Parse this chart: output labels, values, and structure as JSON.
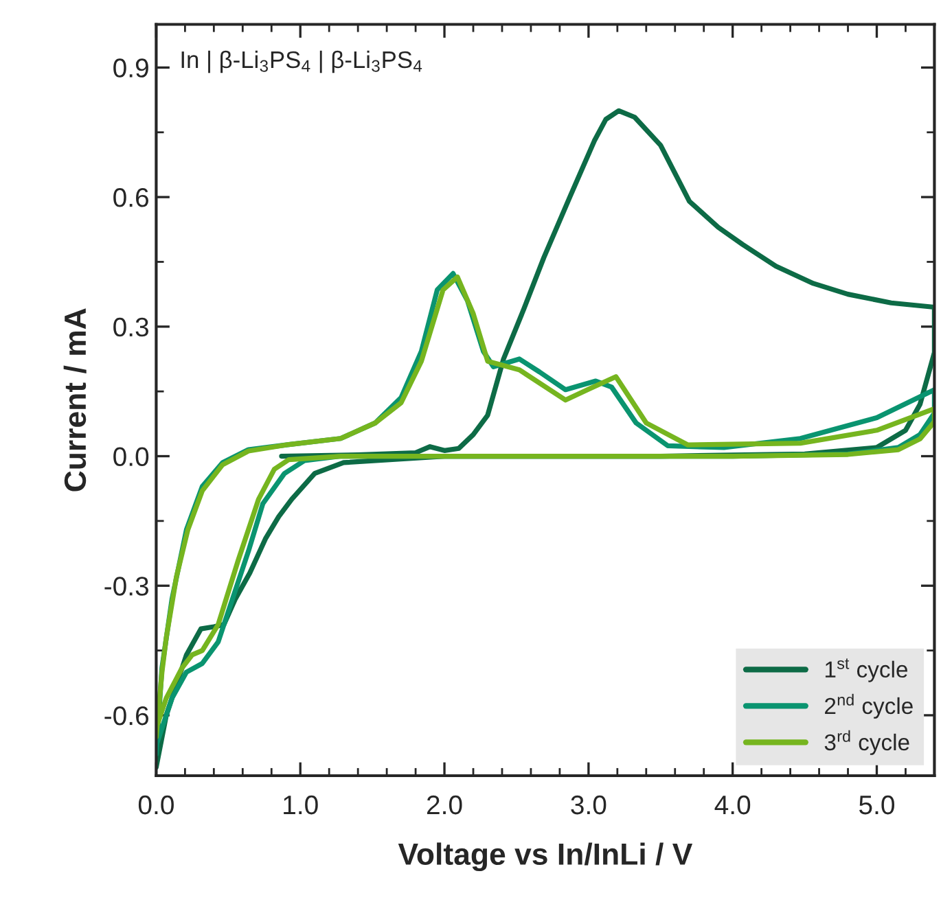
{
  "chart_data": {
    "type": "line",
    "xlabel": "Voltage vs In/InLi / V",
    "ylabel": "Current / mA",
    "annotations": [
      "In | β-Li$_{3}$PS$_{4}$ | β-Li$_{3}$PS$_{4}$"
    ],
    "xlim": [
      0,
      5.4
    ],
    "ylim": [
      -0.74,
      1.0
    ],
    "xticks": [
      {
        "value": 0,
        "label": "0.0"
      },
      {
        "value": 1,
        "label": "1.0"
      },
      {
        "value": 2,
        "label": "2.0"
      },
      {
        "value": 3,
        "label": "3.0"
      },
      {
        "value": 4,
        "label": "4.0"
      },
      {
        "value": 5,
        "label": "5.0"
      }
    ],
    "yticks": [
      {
        "value": -0.6,
        "label": "-0.6"
      },
      {
        "value": -0.3,
        "label": "-0.3"
      },
      {
        "value": 0,
        "label": "0.0"
      },
      {
        "value": 0.3,
        "label": "0.3"
      },
      {
        "value": 0.6,
        "label": "0.6"
      },
      {
        "value": 0.9,
        "label": "0.9"
      }
    ],
    "grid": false,
    "legend": "bottom right",
    "marker": "none",
    "line_style": "solid",
    "series": [
      {
        "name": "1$^{st}$ cycle",
        "color": "#0d6b46",
        "x": [
          0.87,
          1.4,
          1.8,
          1.9,
          2.0,
          2.1,
          2.2,
          2.3,
          2.41,
          2.55,
          2.69,
          2.87,
          3.04,
          3.12,
          3.21,
          3.32,
          3.5,
          3.7,
          3.9,
          4.07,
          4.3,
          4.56,
          4.8,
          5.1,
          5.4,
          5.4,
          5.3,
          5.2,
          5.0,
          4.5,
          3.5,
          2.0,
          1.3,
          1.1,
          0.94,
          0.85,
          0.76,
          0.65,
          0.55,
          0.47,
          0.4,
          0.31,
          0.21,
          0.14,
          0.07,
          0.0
        ],
        "values": [
          0.0,
          0.003,
          0.008,
          0.022,
          0.013,
          0.018,
          0.05,
          0.095,
          0.225,
          0.34,
          0.46,
          0.6,
          0.73,
          0.78,
          0.8,
          0.785,
          0.72,
          0.59,
          0.53,
          0.49,
          0.44,
          0.4,
          0.375,
          0.355,
          0.345,
          0.24,
          0.12,
          0.06,
          0.02,
          0.005,
          0.0,
          0.0,
          -0.015,
          -0.04,
          -0.1,
          -0.14,
          -0.19,
          -0.27,
          -0.33,
          -0.39,
          -0.395,
          -0.4,
          -0.46,
          -0.53,
          -0.6,
          -0.72
        ]
      },
      {
        "name": "2$^{nd}$ cycle",
        "color": "#0a9470",
        "x": [
          0.0,
          0.04,
          0.11,
          0.21,
          0.32,
          0.46,
          0.64,
          0.92,
          1.28,
          1.52,
          1.7,
          1.84,
          1.95,
          2.06,
          2.16,
          2.27,
          2.34,
          2.52,
          2.66,
          2.84,
          3.05,
          3.16,
          3.33,
          3.55,
          3.94,
          4.47,
          5.0,
          5.4,
          5.4,
          5.3,
          5.15,
          4.8,
          4.0,
          1.28,
          1.03,
          0.89,
          0.74,
          0.64,
          0.53,
          0.43,
          0.32,
          0.21,
          0.11,
          0.0
        ],
        "values": [
          -0.69,
          -0.49,
          -0.33,
          -0.17,
          -0.07,
          -0.015,
          0.015,
          0.027,
          0.041,
          0.077,
          0.136,
          0.243,
          0.385,
          0.423,
          0.36,
          0.243,
          0.207,
          0.225,
          0.195,
          0.154,
          0.174,
          0.16,
          0.077,
          0.024,
          0.02,
          0.041,
          0.089,
          0.154,
          0.1,
          0.05,
          0.02,
          0.005,
          0.0,
          0.0,
          -0.01,
          -0.04,
          -0.11,
          -0.22,
          -0.33,
          -0.43,
          -0.48,
          -0.5,
          -0.56,
          -0.67
        ]
      },
      {
        "name": "3$^{rd}$ cycle",
        "color": "#76b51f",
        "x": [
          0.0,
          0.04,
          0.07,
          0.14,
          0.22,
          0.32,
          0.46,
          0.64,
          0.92,
          1.28,
          1.52,
          1.7,
          1.84,
          1.99,
          2.09,
          2.2,
          2.3,
          2.52,
          2.84,
          3.0,
          3.19,
          3.4,
          3.69,
          4.47,
          5.0,
          5.4,
          5.4,
          5.3,
          5.15,
          4.8,
          4.0,
          1.28,
          0.92,
          0.82,
          0.71,
          0.57,
          0.43,
          0.32,
          0.25,
          0.18,
          0.07,
          0.0
        ],
        "values": [
          -0.65,
          -0.5,
          -0.42,
          -0.28,
          -0.17,
          -0.08,
          -0.02,
          0.012,
          0.027,
          0.041,
          0.077,
          0.124,
          0.22,
          0.385,
          0.415,
          0.33,
          0.22,
          0.2,
          0.13,
          0.155,
          0.184,
          0.077,
          0.026,
          0.03,
          0.06,
          0.11,
          0.08,
          0.04,
          0.015,
          0.004,
          0.0,
          0.0,
          -0.008,
          -0.03,
          -0.1,
          -0.24,
          -0.39,
          -0.45,
          -0.46,
          -0.49,
          -0.56,
          -0.63
        ]
      }
    ]
  }
}
